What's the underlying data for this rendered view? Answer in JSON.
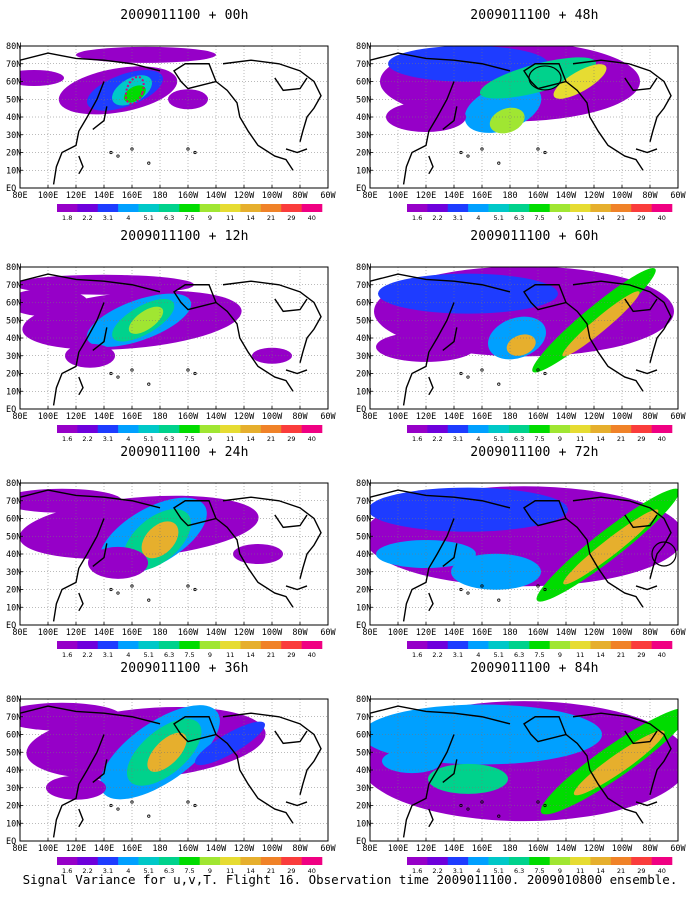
{
  "figure_caption": "Signal Variance for u,v,T. Flight 16. Observation time 2009011100. 2009010800 ensemble.",
  "colorbar": {
    "labels": [
      "1.6",
      "2.2",
      "3.1",
      "4",
      "5.1",
      "6.3",
      "7.5",
      "9",
      "11",
      "14",
      "21",
      "29",
      "40"
    ],
    "labels_first_panel": [
      "1.8",
      "2.2",
      "3.1",
      "4",
      "5.1",
      "6.3",
      "7.5",
      "9",
      "11",
      "14",
      "21",
      "29",
      "40"
    ],
    "colors": [
      "#9600c8",
      "#6e00dc",
      "#1e3cff",
      "#00a0ff",
      "#00c8c8",
      "#00d28c",
      "#00dc00",
      "#a0e632",
      "#e6dc32",
      "#e6af2d",
      "#f08228",
      "#fa3c3c",
      "#f00082"
    ]
  },
  "axes": {
    "lat_labels": [
      "80N",
      "70N",
      "60N",
      "50N",
      "40N",
      "30N",
      "20N",
      "10N",
      "EQ"
    ],
    "lon_labels": [
      "80E",
      "100E",
      "120E",
      "140E",
      "160E",
      "180",
      "160W",
      "140W",
      "120W",
      "100W",
      "80W",
      "60W"
    ]
  },
  "panels": [
    {
      "id": "p00",
      "title": "2009011100 + 00h",
      "col": 0,
      "row": 0
    },
    {
      "id": "p12",
      "title": "2009011100 + 12h",
      "col": 0,
      "row": 1
    },
    {
      "id": "p24",
      "title": "2009011100 + 24h",
      "col": 0,
      "row": 2
    },
    {
      "id": "p36",
      "title": "2009011100 + 36h",
      "col": 0,
      "row": 3
    },
    {
      "id": "p48",
      "title": "2009011100 + 48h",
      "col": 1,
      "row": 0
    },
    {
      "id": "p60",
      "title": "2009011100 + 60h",
      "col": 1,
      "row": 1
    },
    {
      "id": "p72",
      "title": "2009011100 + 72h",
      "col": 1,
      "row": 2
    },
    {
      "id": "p84",
      "title": "2009011100 + 84h",
      "col": 1,
      "row": 3
    }
  ]
}
